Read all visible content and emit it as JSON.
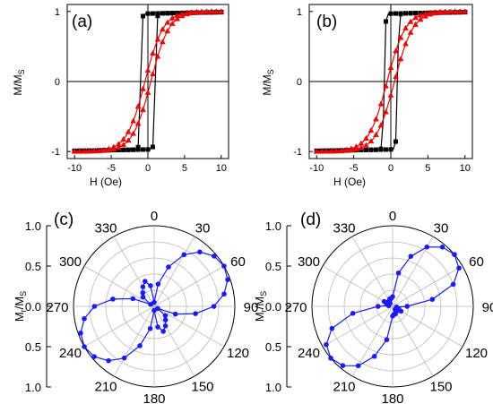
{
  "figure": {
    "panels_loops": [
      {
        "label": "(a)",
        "ylabel": "M/M",
        "ylabel_sub": "S",
        "xlabel": "H (Oe)"
      },
      {
        "label": "(b)",
        "ylabel": "M/M",
        "ylabel_sub": "S",
        "xlabel": "H (Oe)"
      }
    ],
    "panels_polar": [
      {
        "label": "(c)",
        "ylabel": "M",
        "ylabel_sub1": "r",
        "ylabel_mid": "/M",
        "ylabel_sub2": "S"
      },
      {
        "label": "(d)",
        "ylabel": "M",
        "ylabel_sub1": "r",
        "ylabel_mid": "/M",
        "ylabel_sub2": "S"
      }
    ],
    "colors": {
      "black_series": "#000000",
      "red_series": "#ff0000",
      "red_marker_edge": "#cc0000",
      "polar_series": "#1a1aff",
      "grid": "#bbbbbb"
    }
  },
  "chart_data": [
    {
      "type": "line",
      "panel": "(a)",
      "xlabel": "H (Oe)",
      "ylabel": "M/Ms",
      "xlim": [
        -11,
        11
      ],
      "ylim": [
        -1.1,
        1.1
      ],
      "xticks": [
        -10,
        -5,
        0,
        5,
        10
      ],
      "yticks": [
        -1,
        0,
        1
      ],
      "series": [
        {
          "style": "square",
          "color": "#000000",
          "shape": "square_loop",
          "Hc": 1.0,
          "x_range": [
            -10,
            10
          ]
        },
        {
          "style": "triangle",
          "color": "#ff0000",
          "shape": "sloped_loop",
          "Hc": 0.4,
          "width": 2.5,
          "x_range": [
            -10,
            10
          ]
        }
      ]
    },
    {
      "type": "line",
      "panel": "(b)",
      "xlabel": "H (Oe)",
      "ylabel": "M/Ms",
      "xlim": [
        -11,
        11
      ],
      "ylim": [
        -1.1,
        1.1
      ],
      "xticks": [
        -10,
        -5,
        0,
        5,
        10
      ],
      "yticks": [
        -1,
        0,
        1
      ],
      "series": [
        {
          "style": "square",
          "color": "#000000",
          "shape": "square_loop",
          "Hc": 0.9,
          "x_range": [
            -10,
            10
          ]
        },
        {
          "style": "triangle",
          "color": "#ff0000",
          "shape": "sloped_loop",
          "Hc": 0.5,
          "width": 2.5,
          "x_range": [
            -10,
            10
          ]
        }
      ]
    },
    {
      "type": "scatter",
      "panel": "(c)",
      "projection": "polar",
      "ylabel": "Mr/Ms",
      "rlim": [
        0,
        1.0
      ],
      "radial_ticks": [
        "1.0",
        "0.5",
        "0.0",
        "0.5",
        "1.0"
      ],
      "angle_ticks": [
        0,
        30,
        60,
        90,
        120,
        150,
        180,
        210,
        240,
        270,
        300,
        330
      ],
      "angle_step_deg": 10,
      "r": [
        0.05,
        0.28,
        0.52,
        0.74,
        0.88,
        0.97,
        1.0,
        0.97,
        0.88,
        0.74,
        0.52,
        0.28,
        0.05,
        0.18,
        0.22,
        0.28,
        0.33,
        0.26,
        0.05,
        0.28,
        0.52,
        0.74,
        0.88,
        0.97,
        1.0,
        0.97,
        0.88,
        0.74,
        0.52,
        0.28,
        0.05,
        0.18,
        0.22,
        0.28,
        0.33,
        0.26
      ]
    },
    {
      "type": "scatter",
      "panel": "(d)",
      "projection": "polar",
      "ylabel": "Mr/Ms",
      "rlim": [
        0,
        1.0
      ],
      "radial_ticks": [
        "1.0",
        "0.5",
        "0.0",
        "0.5",
        "1.0"
      ],
      "angle_ticks": [
        0,
        30,
        60,
        90,
        120,
        150,
        180,
        210,
        240,
        270,
        300,
        330
      ],
      "angle_step_deg": 10,
      "r": [
        0.12,
        0.42,
        0.66,
        0.85,
        0.96,
        1.0,
        0.95,
        0.8,
        0.5,
        0.18,
        0.05,
        0.08,
        0.12,
        0.08,
        0.05,
        0.08,
        0.1,
        0.1,
        0.12,
        0.42,
        0.66,
        0.85,
        0.96,
        1.0,
        0.95,
        0.8,
        0.5,
        0.18,
        0.05,
        0.08,
        0.12,
        0.08,
        0.05,
        0.08,
        0.1,
        0.1
      ]
    }
  ]
}
